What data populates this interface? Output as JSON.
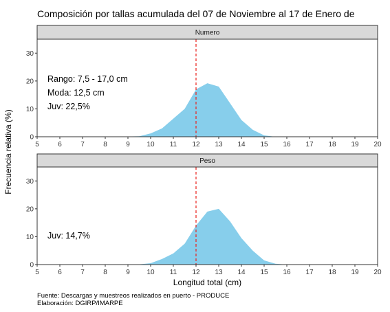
{
  "chart_data": {
    "type": "area",
    "title": "Composición por tallas acumulada del 07 de Noviembre al 17 de Enero de",
    "xlabel": "Longitud total (cm)",
    "ylabel": "Frecuencia relativa (%)",
    "xlim": [
      5,
      20
    ],
    "ylim": [
      0,
      35
    ],
    "x_ticks": [
      5,
      6,
      7,
      8,
      9,
      10,
      11,
      12,
      13,
      14,
      15,
      16,
      17,
      18,
      19,
      20
    ],
    "y_ticks": [
      0,
      10,
      20,
      30
    ],
    "reference_line": {
      "x": 12,
      "style": "dashed",
      "color": "#e8201a"
    },
    "fill_color": "#87ceeb",
    "grid": false,
    "panels": [
      {
        "name": "Numero",
        "annotations": [
          "Rango: 7,5 - 17,0 cm",
          "Moda: 12,5 cm",
          "Juv: 22,5%"
        ],
        "x": [
          7.5,
          8.5,
          9.5,
          10,
          10.5,
          11,
          11.5,
          12,
          12.5,
          13,
          13.5,
          14,
          14.5,
          15,
          15.5,
          16,
          17
        ],
        "y": [
          0,
          0,
          0.2,
          1.2,
          3,
          6.5,
          10,
          17,
          19.2,
          18,
          12,
          6,
          2.5,
          0.5,
          0,
          0,
          0
        ]
      },
      {
        "name": "Peso",
        "annotations": [
          "Juv: 14,7%"
        ],
        "x": [
          7.5,
          8.5,
          9.5,
          10,
          10.5,
          11,
          11.5,
          12,
          12.5,
          13,
          13.5,
          14,
          14.5,
          15,
          15.5,
          16,
          17
        ],
        "y": [
          0,
          0,
          0.1,
          0.5,
          2,
          4,
          7.5,
          14,
          19,
          20,
          15.5,
          9.5,
          5,
          1.5,
          0.3,
          0,
          0
        ]
      }
    ],
    "source_lines": [
      "Fuente: Descargas y muestreos realizados en puerto - PRODUCE",
      "Elaboración: DGIRP/IMARPE"
    ]
  }
}
